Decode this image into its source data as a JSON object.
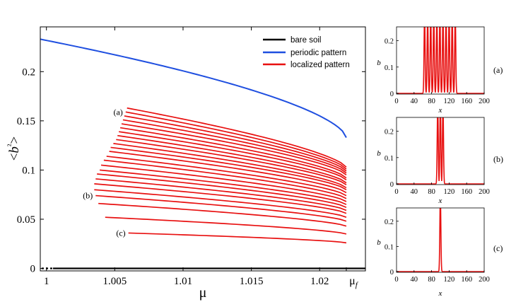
{
  "colors": {
    "bare_soil": "#000000",
    "periodic": "#1f4fe0",
    "localized": "#e81010",
    "axis": "#000000"
  },
  "chart_data": [
    {
      "type": "line",
      "title": "",
      "xlabel": "μ",
      "ylabel": "<b²>",
      "xlim": [
        0.99955,
        1.02335
      ],
      "ylim": [
        -0.0025,
        0.2455
      ],
      "xticks": [
        1,
        1.005,
        1.01,
        1.015,
        1.02
      ],
      "xtick_labels": [
        "1",
        "1.005",
        "1.01",
        "1.015",
        "1.02"
      ],
      "yticks": [
        0,
        0.05,
        0.1,
        0.15,
        0.2
      ],
      "ytick_labels": [
        "0",
        "0.05",
        "0.1",
        "0.15",
        "0.2"
      ],
      "extra_xtick": {
        "value": 1.02195,
        "label_main": "μ",
        "label_sub": "f"
      },
      "legend": {
        "placement": "top-right",
        "entries": [
          {
            "label": "bare soil",
            "color": "#000000"
          },
          {
            "label": "periodic pattern",
            "color": "#1f4fe0"
          },
          {
            "label": "localized pattern",
            "color": "#e81010"
          }
        ]
      },
      "series": [
        {
          "name": "bare soil",
          "color": "#000000",
          "x": [
            0.99955,
            1.02335
          ],
          "y": [
            0,
            0
          ]
        },
        {
          "name": "periodic pattern",
          "color": "#1f4fe0",
          "x_start": 0.99955,
          "x_end": 1.02195,
          "y_start": 0.233,
          "y_end": 0.133
        },
        {
          "name": "localized pattern",
          "color": "#e81010",
          "x_end": 1.02195,
          "branches": [
            {
              "x_start": 1.0059,
              "y_start": 0.163,
              "y_end": 0.103
            },
            {
              "x_start": 1.0058,
              "y_start": 0.159,
              "y_end": 0.101
            },
            {
              "x_start": 1.0057,
              "y_start": 0.155,
              "y_end": 0.099
            },
            {
              "x_start": 1.0056,
              "y_start": 0.151,
              "y_end": 0.097
            },
            {
              "x_start": 1.0055,
              "y_start": 0.147,
              "y_end": 0.095
            },
            {
              "x_start": 1.0054,
              "y_start": 0.143,
              "y_end": 0.092
            },
            {
              "x_start": 1.0053,
              "y_start": 0.139,
              "y_end": 0.09
            },
            {
              "x_start": 1.0052,
              "y_start": 0.135,
              "y_end": 0.087
            },
            {
              "x_start": 1.0051,
              "y_start": 0.131,
              "y_end": 0.085
            },
            {
              "x_start": 1.0049,
              "y_start": 0.127,
              "y_end": 0.082
            },
            {
              "x_start": 1.0047,
              "y_start": 0.123,
              "y_end": 0.08
            },
            {
              "x_start": 1.0046,
              "y_start": 0.119,
              "y_end": 0.077
            },
            {
              "x_start": 1.0044,
              "y_start": 0.114,
              "y_end": 0.074
            },
            {
              "x_start": 1.0042,
              "y_start": 0.11,
              "y_end": 0.071
            },
            {
              "x_start": 1.004,
              "y_start": 0.105,
              "y_end": 0.068
            },
            {
              "x_start": 1.0039,
              "y_start": 0.1,
              "y_end": 0.065
            },
            {
              "x_start": 1.0037,
              "y_start": 0.096,
              "y_end": 0.062
            },
            {
              "x_start": 1.0036,
              "y_start": 0.091,
              "y_end": 0.059
            },
            {
              "x_start": 1.0035,
              "y_start": 0.086,
              "y_end": 0.056
            },
            {
              "x_start": 1.0035,
              "y_start": 0.08,
              "y_end": 0.052
            },
            {
              "x_start": 1.0036,
              "y_start": 0.074,
              "y_end": 0.048
            },
            {
              "x_start": 1.0038,
              "y_start": 0.066,
              "y_end": 0.043
            },
            {
              "x_start": 1.0043,
              "y_start": 0.052,
              "y_end": 0.035
            },
            {
              "x_start": 1.006,
              "y_start": 0.036,
              "y_end": 0.026
            }
          ]
        }
      ],
      "annotations": [
        {
          "text": "(a)",
          "branch_index": 1
        },
        {
          "text": "(b)",
          "branch_index": 20
        },
        {
          "text": "(c)",
          "branch_index": 23
        }
      ]
    },
    {
      "type": "line",
      "panel": "a",
      "panel_label": "(a)",
      "xlabel": "x",
      "ylabel": "b",
      "xlim": [
        0,
        200
      ],
      "ylim": [
        0,
        0.25
      ],
      "xticks": [
        0,
        40,
        80,
        120,
        160,
        200
      ],
      "xtick_labels": [
        "0",
        "40",
        "80",
        "120",
        "160",
        "200"
      ],
      "yticks": [
        0,
        0.1,
        0.2
      ],
      "ytick_labels": [
        "0",
        "0.1",
        "0.2"
      ],
      "peak_count": 11,
      "peak_first_x": 64,
      "peak_last_x": 134,
      "peak_height": 0.25,
      "peak_width": 3
    },
    {
      "type": "line",
      "panel": "b",
      "panel_label": "(b)",
      "xlabel": "x",
      "ylabel": "b",
      "xlim": [
        0,
        200
      ],
      "ylim": [
        0,
        0.25
      ],
      "xticks": [
        0,
        40,
        80,
        120,
        160,
        200
      ],
      "xtick_labels": [
        "0",
        "40",
        "80",
        "120",
        "160",
        "200"
      ],
      "yticks": [
        0,
        0.1,
        0.2
      ],
      "ytick_labels": [
        "0",
        "0.1",
        "0.2"
      ],
      "peak_count": 3,
      "peak_first_x": 94,
      "peak_last_x": 106,
      "peak_height": 0.25,
      "peak_width": 3
    },
    {
      "type": "line",
      "panel": "c",
      "panel_label": "(c)",
      "xlabel": "x",
      "ylabel": "b",
      "xlim": [
        0,
        200
      ],
      "ylim": [
        0,
        0.25
      ],
      "xticks": [
        0,
        40,
        80,
        120,
        160,
        200
      ],
      "xtick_labels": [
        "0",
        "40",
        "80",
        "120",
        "160",
        "200"
      ],
      "yticks": [
        0,
        0.1,
        0.2
      ],
      "ytick_labels": [
        "0",
        "0.1",
        "0.2"
      ],
      "peak_count": 1,
      "peak_first_x": 100,
      "peak_last_x": 100,
      "peak_height": 0.25,
      "peak_width": 3
    }
  ]
}
